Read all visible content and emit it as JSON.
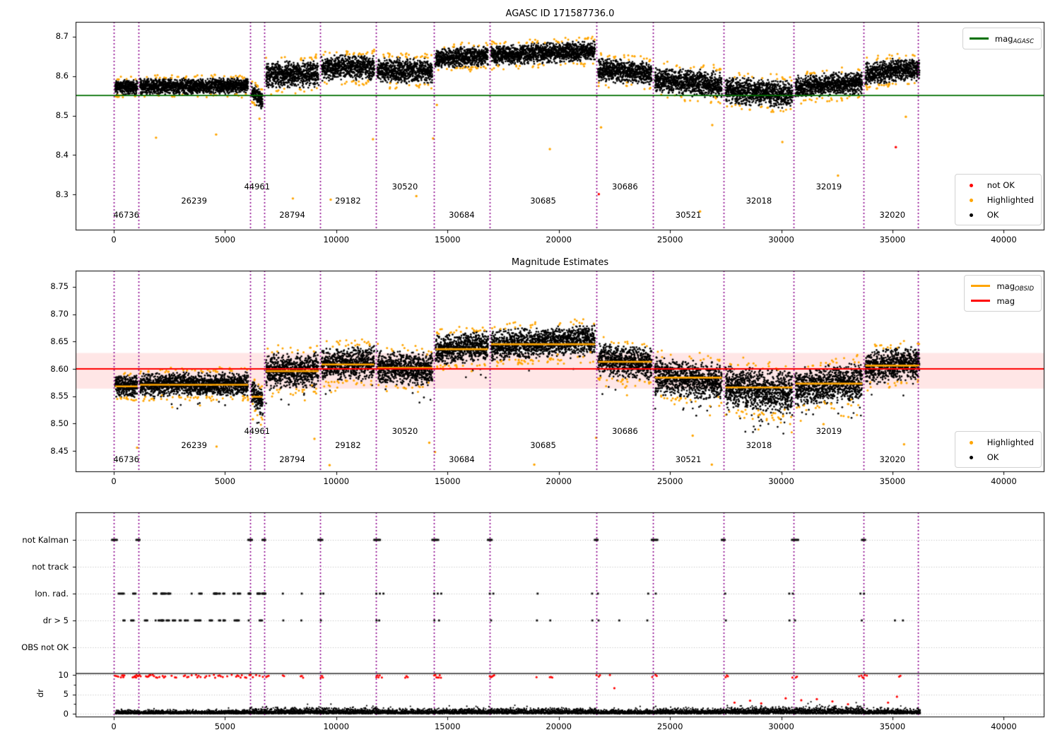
{
  "titles": {
    "top": "AGASC ID 171587736.0",
    "middle": "Magnitude Estimates"
  },
  "colors": {
    "ok": "#000000",
    "highlighted": "#FFA500",
    "not_ok": "#FF0000",
    "mag_agasc_line": "#007000",
    "mag_line": "#FF0000",
    "mag_band": "rgba(255,60,60,0.13)",
    "obsid_line": "#FFA500",
    "boundary_line": "#8B008B",
    "grid": "#BBBBBB",
    "cap_line": "#000000"
  },
  "legends": {
    "agasc": {
      "label": "mag",
      "sub": "AGASC"
    },
    "top_status": [
      {
        "label": "not OK",
        "color": "#FF0000"
      },
      {
        "label": "Highlighted",
        "color": "#FFA500"
      },
      {
        "label": "OK",
        "color": "#000000"
      }
    ],
    "mid_ref": [
      {
        "label": "mag",
        "sub": "OBSID",
        "color": "#FFA500"
      },
      {
        "label": "mag",
        "sub": "",
        "color": "#FF0000"
      }
    ],
    "mid_status": [
      {
        "label": "Highlighted",
        "color": "#FFA500"
      },
      {
        "label": "OK",
        "color": "#000000"
      }
    ]
  },
  "x_axis": {
    "lim": [
      -1715,
      41830
    ],
    "ticks": [
      0,
      5000,
      10000,
      15000,
      20000,
      25000,
      30000,
      35000,
      40000
    ]
  },
  "chart_data": [
    {
      "type": "scatter",
      "title": "AGASC ID 171587736.0",
      "ylim": [
        8.209,
        8.738
      ],
      "yticks": [
        {
          "v": 8.3,
          "label": "8.3"
        },
        {
          "v": 8.4,
          "label": "8.4"
        },
        {
          "v": 8.5,
          "label": "8.5"
        },
        {
          "v": 8.6,
          "label": "8.6"
        },
        {
          "v": 8.7,
          "label": "8.7"
        }
      ],
      "agasc_mag": 8.551,
      "boundaries": [
        0,
        1100,
        6120,
        6760,
        9270,
        11780,
        14390,
        16890,
        21700,
        24250,
        27400,
        30570,
        33710,
        36160
      ],
      "segments": [
        {
          "obsid": "46736",
          "x0": 60,
          "x1": 1060,
          "mean": 8.572,
          "spread": 0.009,
          "trend": 0.0,
          "label_row": 0
        },
        {
          "obsid": "26239",
          "x0": 1180,
          "x1": 6040,
          "mean": 8.5745,
          "spread": 0.0095,
          "trend": 0.002,
          "label_row": 1
        },
        {
          "obsid": "44961",
          "x0": 6190,
          "x1": 6690,
          "mean": 8.549,
          "spread": 0.011,
          "trend": -0.028,
          "label_row": 2
        },
        {
          "obsid": "28794",
          "x0": 6840,
          "x1": 9200,
          "mean": 8.604,
          "spread": 0.016,
          "trend": 0.004,
          "label_row": 0
        },
        {
          "obsid": "29182",
          "x0": 9340,
          "x1": 11710,
          "mean": 8.621,
          "spread": 0.015,
          "trend": 0.004,
          "label_row": 1
        },
        {
          "obsid": "30520",
          "x0": 11850,
          "x1": 14320,
          "mean": 8.614,
          "spread": 0.015,
          "trend": -0.004,
          "label_row": 2
        },
        {
          "obsid": "30684",
          "x0": 14460,
          "x1": 16820,
          "mean": 8.648,
          "spread": 0.012,
          "trend": 0.006,
          "label_row": 0
        },
        {
          "obsid": "30685",
          "x0": 16960,
          "x1": 21630,
          "mean": 8.658,
          "spread": 0.012,
          "trend": 0.01,
          "label_row": 1
        },
        {
          "obsid": "30686",
          "x0": 21770,
          "x1": 24180,
          "mean": 8.611,
          "spread": 0.014,
          "trend": -0.01,
          "label_row": 2
        },
        {
          "obsid": "30521",
          "x0": 24320,
          "x1": 27330,
          "mean": 8.584,
          "spread": 0.016,
          "trend": -0.012,
          "label_row": 0
        },
        {
          "obsid": "32018",
          "x0": 27490,
          "x1": 30500,
          "mean": 8.559,
          "spread": 0.016,
          "trend": -0.014,
          "label_row": 1
        },
        {
          "obsid": "32019",
          "x0": 30640,
          "x1": 33640,
          "mean": 8.578,
          "spread": 0.014,
          "trend": 0.012,
          "label_row": 2
        },
        {
          "obsid": "32020",
          "x0": 33780,
          "x1": 36210,
          "mean": 8.613,
          "spread": 0.014,
          "trend": 0.012,
          "label_row": 0
        }
      ],
      "outliers_highlighted": [
        [
          1900,
          8.444
        ],
        [
          4600,
          8.452
        ],
        [
          6550,
          8.492
        ],
        [
          8050,
          8.29
        ],
        [
          9750,
          8.287
        ],
        [
          11650,
          8.44
        ],
        [
          13600,
          8.296
        ],
        [
          14350,
          8.442
        ],
        [
          14520,
          8.527
        ],
        [
          19600,
          8.415
        ],
        [
          21900,
          8.47
        ],
        [
          26350,
          8.257
        ],
        [
          26900,
          8.476
        ],
        [
          30050,
          8.433
        ],
        [
          32550,
          8.348
        ],
        [
          35600,
          8.497
        ]
      ],
      "outliers_not_ok": [
        [
          21800,
          8.301
        ],
        [
          35150,
          8.42
        ]
      ]
    },
    {
      "type": "scatter",
      "title": "Magnitude Estimates",
      "ylim": [
        8.411,
        8.778
      ],
      "yticks": [
        {
          "v": 8.45,
          "label": "8.45"
        },
        {
          "v": 8.5,
          "label": "8.50"
        },
        {
          "v": 8.55,
          "label": "8.55"
        },
        {
          "v": 8.6,
          "label": "8.60"
        },
        {
          "v": 8.65,
          "label": "8.65"
        },
        {
          "v": 8.7,
          "label": "8.70"
        },
        {
          "v": 8.75,
          "label": "8.75"
        }
      ],
      "mag": 8.6,
      "mag_band": [
        8.564,
        8.629
      ],
      "segments": [
        {
          "obsid": "46736",
          "x0": 60,
          "x1": 1060,
          "mag_obsid": 8.568,
          "mean": 8.568,
          "spread": 0.009,
          "trend": 0.0,
          "tail": 4,
          "label_row": 0
        },
        {
          "obsid": "26239",
          "x0": 1180,
          "x1": 6040,
          "mag_obsid": 8.571,
          "mean": 8.572,
          "spread": 0.01,
          "trend": 0.002,
          "tail": 14,
          "label_row": 1
        },
        {
          "obsid": "44961",
          "x0": 6190,
          "x1": 6690,
          "mag_obsid": 8.549,
          "mean": 8.548,
          "spread": 0.011,
          "trend": -0.024,
          "tail": 6,
          "label_row": 2
        },
        {
          "obsid": "28794",
          "x0": 6840,
          "x1": 9200,
          "mag_obsid": 8.596,
          "mean": 8.597,
          "spread": 0.015,
          "trend": 0.003,
          "tail": 10,
          "label_row": 0
        },
        {
          "obsid": "29182",
          "x0": 9340,
          "x1": 11710,
          "mag_obsid": 8.608,
          "mean": 8.61,
          "spread": 0.014,
          "trend": 0.004,
          "tail": 8,
          "label_row": 1
        },
        {
          "obsid": "30520",
          "x0": 11850,
          "x1": 14320,
          "mag_obsid": 8.602,
          "mean": 8.601,
          "spread": 0.014,
          "trend": -0.004,
          "tail": 10,
          "label_row": 2
        },
        {
          "obsid": "30684",
          "x0": 14460,
          "x1": 16820,
          "mag_obsid": 8.636,
          "mean": 8.638,
          "spread": 0.013,
          "trend": 0.006,
          "tail": 6,
          "label_row": 0
        },
        {
          "obsid": "30685",
          "x0": 16960,
          "x1": 21630,
          "mag_obsid": 8.645,
          "mean": 8.648,
          "spread": 0.013,
          "trend": 0.009,
          "tail": 10,
          "label_row": 1
        },
        {
          "obsid": "30686",
          "x0": 21770,
          "x1": 24180,
          "mag_obsid": 8.613,
          "mean": 8.613,
          "spread": 0.014,
          "trend": -0.008,
          "tail": 8,
          "label_row": 2
        },
        {
          "obsid": "30521",
          "x0": 24320,
          "x1": 27330,
          "mag_obsid": 8.584,
          "mean": 8.582,
          "spread": 0.016,
          "trend": -0.012,
          "tail": 22,
          "label_row": 0
        },
        {
          "obsid": "32018",
          "x0": 27490,
          "x1": 30500,
          "mag_obsid": 8.566,
          "mean": 8.562,
          "spread": 0.018,
          "trend": -0.014,
          "tail": 30,
          "label_row": 1
        },
        {
          "obsid": "32019",
          "x0": 30640,
          "x1": 33640,
          "mag_obsid": 8.573,
          "mean": 8.572,
          "spread": 0.016,
          "trend": 0.01,
          "tail": 22,
          "label_row": 2
        },
        {
          "obsid": "32020",
          "x0": 33780,
          "x1": 36210,
          "mag_obsid": 8.606,
          "mean": 8.607,
          "spread": 0.014,
          "trend": 0.01,
          "tail": 6,
          "label_row": 0
        }
      ],
      "outliers_highlighted": [
        [
          1050,
          8.456
        ],
        [
          4620,
          8.458
        ],
        [
          6250,
          8.508
        ],
        [
          9020,
          8.472
        ],
        [
          9700,
          8.424
        ],
        [
          14180,
          8.465
        ],
        [
          14440,
          8.448
        ],
        [
          18900,
          8.425
        ],
        [
          21680,
          8.474
        ],
        [
          26020,
          8.478
        ],
        [
          26880,
          8.425
        ],
        [
          29920,
          8.509
        ],
        [
          31900,
          8.499
        ],
        [
          33020,
          8.512
        ],
        [
          35520,
          8.462
        ]
      ]
    },
    {
      "type": "categorical-scatter",
      "rows": [
        "not Kalman",
        "not track",
        "Ion. rad.",
        "dr > 5",
        "OBS not OK"
      ],
      "dr_ylabel": "dr",
      "dr_ticks": [
        {
          "v": 0,
          "label": "0"
        },
        {
          "v": 5,
          "label": "5"
        },
        {
          "v": 10,
          "label": "10"
        }
      ],
      "cap_value": 10.35,
      "not_kalman_clusters": [
        0,
        1100,
        6120,
        6760,
        9270,
        11780,
        14390,
        16890,
        21700,
        24250,
        27400,
        30570,
        33710
      ],
      "not_track": [],
      "obs_not_ok": [],
      "ion_rad": {
        "dense_range": [
          0,
          6800
        ],
        "dense_clusters": 26,
        "sparse": [
          7600,
          8450,
          9300,
          9420,
          11800,
          11960,
          12120,
          14400,
          14560,
          14720,
          16900,
          17060,
          19050,
          21500,
          21760,
          24020,
          24360,
          27480,
          30360,
          30520,
          33560,
          33720
        ]
      },
      "dr5": {
        "dense_range": [
          0,
          6800
        ],
        "dense_clusters": 24,
        "sparse": [
          7620,
          8430,
          9310,
          11810,
          11930,
          14410,
          14620,
          16960,
          19020,
          19620,
          21510,
          21790,
          22720,
          23980,
          27510,
          30370,
          30620,
          33620,
          35110,
          35470
        ]
      },
      "dr_band_amp": [
        [
          0,
          6100,
          0.5
        ],
        [
          6100,
          11800,
          0.85
        ],
        [
          11800,
          14500,
          0.7
        ],
        [
          14500,
          21700,
          0.75
        ],
        [
          21700,
          24250,
          0.6
        ],
        [
          24250,
          27400,
          0.7
        ],
        [
          27400,
          30570,
          0.95
        ],
        [
          30570,
          33700,
          1.0
        ],
        [
          33700,
          36300,
          0.7
        ]
      ],
      "dr_red_clipped": [
        60,
        130,
        200,
        320,
        420,
        850,
        950,
        1020,
        1100,
        1450,
        1600,
        1750,
        1900,
        2050,
        2200,
        2600,
        2750,
        3150,
        3300,
        3500,
        3700,
        3900,
        4100,
        4300,
        4500,
        4700,
        4900,
        5100,
        5300,
        5500,
        5700,
        5900,
        6100,
        6250,
        6400,
        6550,
        6700,
        6850,
        7600,
        8400,
        9300,
        9400,
        11800,
        11900,
        12050,
        13100,
        14400,
        14500,
        14650,
        16900,
        17000,
        17100,
        19000,
        19600,
        21700,
        21800,
        22300,
        24200,
        24350,
        27500,
        27600,
        30500,
        30650,
        33500,
        33600,
        33700,
        33850,
        35300
      ],
      "dr_red_mid": [
        [
          22500,
          6.6
        ],
        [
          27900,
          2.9
        ],
        [
          28600,
          3.4
        ],
        [
          29100,
          2.7
        ],
        [
          30200,
          4.0
        ],
        [
          30900,
          3.5
        ],
        [
          31600,
          3.8
        ],
        [
          32300,
          3.2
        ],
        [
          33000,
          2.5
        ],
        [
          34800,
          2.9
        ],
        [
          35200,
          4.4
        ]
      ]
    }
  ]
}
